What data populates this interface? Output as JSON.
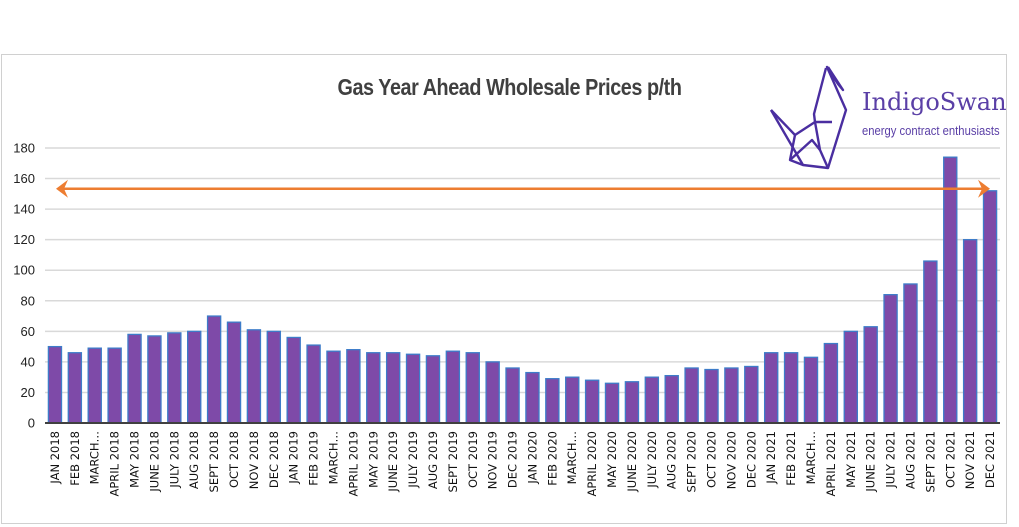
{
  "chart_data": {
    "type": "bar",
    "title": "Gas Year Ahead Wholesale Prices p/th",
    "xlabel": "",
    "ylabel": "",
    "ylim": [
      0,
      180
    ],
    "yticks": [
      0,
      20,
      40,
      60,
      80,
      100,
      120,
      140,
      160,
      180
    ],
    "grid": true,
    "bar_color": "#7e4aa8",
    "bar_edge_color": "#3d7cc9",
    "categories": [
      "JAN 2018",
      "FEB 2018",
      "MARCH…",
      "APRIL 2018",
      "MAY 2018",
      "JUNE 2018",
      "JULY 2018",
      "AUG 2018",
      "SEPT 2018",
      "OCT 2018",
      "NOV 2018",
      "DEC 2018",
      "JAN 2019",
      "FEB 2019",
      "MARCH…",
      "APRIL 2019",
      "MAY 2019",
      "JUNE 2019",
      "JULY 2019",
      "AUG 2019",
      "SEPT 2019",
      "OCT 2019",
      "NOV 2019",
      "DEC 2019",
      "JAN 2020",
      "FEB 2020",
      "MARCH…",
      "APRIL 2020",
      "MAY 2020",
      "JUNE 2020",
      "JULY 2020",
      "AUG 2020",
      "SEPT 2020",
      "OCT 2020",
      "NOV 2020",
      "DEC 2020",
      "JAN 2021",
      "FEB 2021",
      "MARCH…",
      "APRIL 2021",
      "MAY 2021",
      "JUNE 2021",
      "JULY 2021",
      "AUG 2021",
      "SEPT 2021",
      "OCT 2021",
      "NOV 2021",
      "DEC  2021"
    ],
    "values": [
      50,
      46,
      49,
      49,
      58,
      57,
      59,
      60,
      70,
      66,
      61,
      60,
      56,
      51,
      47,
      48,
      46,
      46,
      45,
      44,
      47,
      46,
      40,
      36,
      33,
      29,
      30,
      28,
      26,
      27,
      30,
      31,
      36,
      35,
      36,
      37,
      46,
      46,
      43,
      52,
      60,
      63,
      84,
      91,
      106,
      174,
      120,
      152
    ],
    "annotations": [
      {
        "type": "double-arrow",
        "value": 152,
        "color": "#ed7d31",
        "description": "horizontal double-headed arrow at the Dec 2021 level spanning the full chart"
      }
    ]
  },
  "logo": {
    "name": "IndigoSwan",
    "tagline": "energy contract enthusiasts",
    "icon": "origami-swan-icon",
    "color": "#5a3fa6"
  }
}
